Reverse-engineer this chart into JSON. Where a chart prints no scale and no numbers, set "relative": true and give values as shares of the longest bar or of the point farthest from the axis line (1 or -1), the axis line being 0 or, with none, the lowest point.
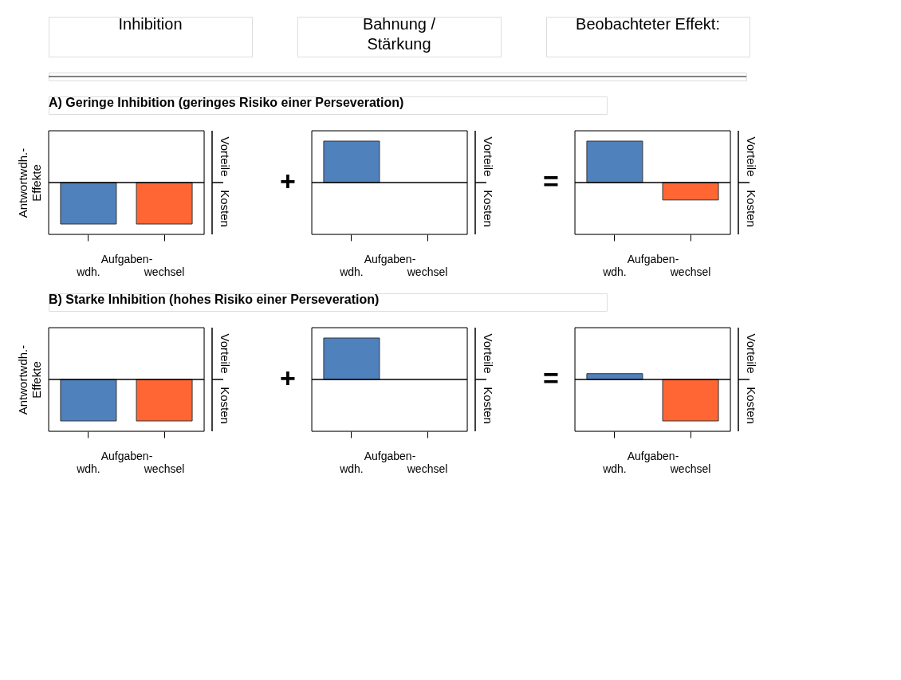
{
  "chart_data": [
    {
      "type": "other",
      "annotations": [
        "Inhibition",
        "Bahnung /\nStärkung",
        "Beobachteter Effekt:"
      ]
    },
    {
      "type": "bar",
      "relative": true,
      "title": "A) Geringe Inhibition (geringes Risiko einer Perseveration)",
      "ylabel": "Antwortwdh.-\nEffekte",
      "xlabel": "Aufgaben-",
      "categories": [
        "wdh.",
        "wechsel"
      ],
      "values": [
        -1,
        -1
      ],
      "colors": [
        "#4f81bd",
        "#ff6633"
      ],
      "annotations": [
        "Vorteile",
        "Kosten"
      ]
    },
    {
      "type": "bar",
      "relative": true,
      "xlabel": "Aufgaben-",
      "categories": [
        "wdh.",
        "wechsel"
      ],
      "values": [
        1,
        null
      ],
      "colors": [
        "#4f81bd",
        "#ff6633"
      ],
      "annotations": [
        "Vorteile",
        "Kosten",
        "+"
      ]
    },
    {
      "type": "bar",
      "relative": true,
      "xlabel": "Aufgaben-",
      "categories": [
        "wdh.",
        "wechsel"
      ],
      "values": [
        1,
        -0.42
      ],
      "colors": [
        "#4f81bd",
        "#ff6633"
      ],
      "annotations": [
        "Vorteile",
        "Kosten",
        "="
      ]
    },
    {
      "type": "bar",
      "relative": true,
      "title": "B) Starke Inhibition (hohes Risiko einer Perseveration)",
      "ylabel": "Antwortwdh.-\nEffekte",
      "xlabel": "Aufgaben-",
      "categories": [
        "wdh.",
        "wechsel"
      ],
      "values": [
        -1,
        -1
      ],
      "colors": [
        "#4f81bd",
        "#ff6633"
      ],
      "annotations": [
        "Vorteile",
        "Kosten"
      ]
    },
    {
      "type": "bar",
      "relative": true,
      "xlabel": "Aufgaben-",
      "categories": [
        "wdh.",
        "wechsel"
      ],
      "values": [
        1,
        null
      ],
      "colors": [
        "#4f81bd",
        "#ff6633"
      ],
      "annotations": [
        "Vorteile",
        "Kosten",
        "+"
      ]
    },
    {
      "type": "bar",
      "relative": true,
      "xlabel": "Aufgaben-",
      "categories": [
        "wdh.",
        "wechsel"
      ],
      "values": [
        0.14,
        -1
      ],
      "colors": [
        "#4f81bd",
        "#ff6633"
      ],
      "annotations": [
        "Vorteile",
        "Kosten",
        "="
      ]
    }
  ]
}
